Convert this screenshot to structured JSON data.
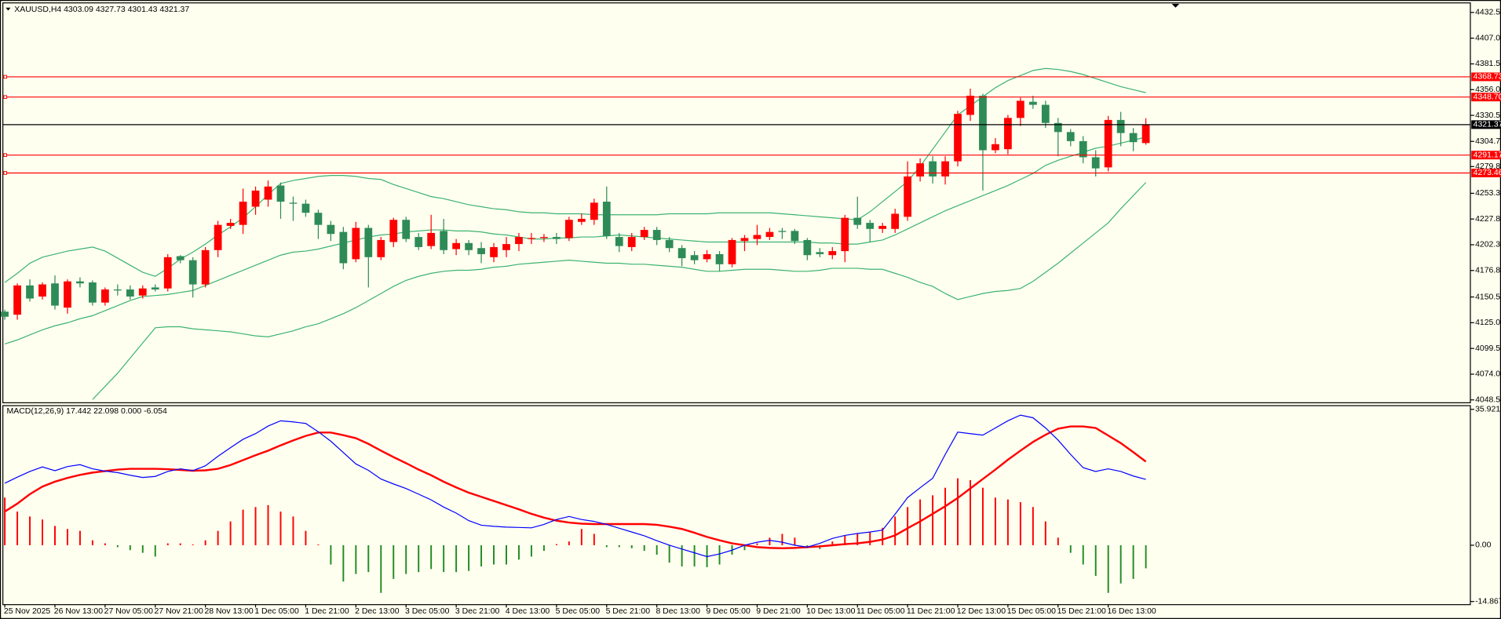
{
  "chart_data": [
    {
      "type": "candlestick",
      "title": "XAUUSD,H4  4303.09 4327.73 4301.43 4321.37",
      "categories": [
        "25 Nov 2025",
        null,
        null,
        null,
        "26 Nov 13:00",
        null,
        null,
        null,
        "27 Nov 05:00",
        null,
        null,
        null,
        "27 Nov 21:00",
        null,
        null,
        null,
        "28 Nov 13:00",
        null,
        null,
        null,
        "1 Dec 05:00",
        null,
        null,
        null,
        "1 Dec 21:00",
        null,
        null,
        null,
        "2 Dec 13:00",
        null,
        null,
        null,
        "3 Dec 05:00",
        null,
        null,
        null,
        "3 Dec 21:00",
        null,
        null,
        null,
        "4 Dec 13:00",
        null,
        null,
        null,
        "5 Dec 05:00",
        null,
        null,
        null,
        "5 Dec 21:00",
        null,
        null,
        null,
        "8 Dec 13:00",
        null,
        null,
        null,
        "9 Dec 05:00",
        null,
        null,
        null,
        "9 Dec 21:00",
        null,
        null,
        null,
        "10 Dec 13:00",
        null,
        null,
        null,
        "11 Dec 05:00",
        null,
        null,
        null,
        "11 Dec 21:00",
        null,
        null,
        null,
        "12 Dec 13:00",
        null,
        null,
        null,
        "15 Dec 05:00",
        null,
        null,
        null,
        "15 Dec 21:00",
        null,
        null,
        null,
        "16 Dec 13:00",
        null,
        null,
        null
      ],
      "open": [
        4136,
        4133,
        4162,
        4151,
        4164,
        4140,
        4166,
        4165,
        4145,
        4158,
        4158,
        4152,
        4160,
        4159,
        4191,
        4187,
        4163,
        4197,
        4221,
        4222,
        4240,
        4247,
        4261,
        4244,
        4243,
        4234,
        4222,
        4215,
        4188,
        4219,
        4190,
        4205,
        4227,
        4210,
        4201,
        4216,
        4198,
        4204,
        4199,
        4190,
        4197,
        4203,
        4208,
        4209,
        4210,
        4209,
        4225,
        4227,
        4245,
        4210,
        4200,
        4210,
        4217,
        4207,
        4199,
        4192,
        4188,
        4193,
        4183,
        4206,
        4208,
        4210,
        4216,
        4216,
        4207,
        4195,
        4192,
        4196,
        4229,
        4224,
        4218,
        4218,
        4230,
        4270,
        4285,
        4270,
        4285,
        4331,
        4350,
        4296,
        4297,
        4328,
        4344,
        4341,
        4323,
        4314,
        4305,
        4289,
        4279,
        4326,
        4313,
        4303.09
      ],
      "high": [
        4138,
        4164,
        4168,
        4165,
        4172,
        4168,
        4170,
        4167,
        4160,
        4163,
        4162,
        4162,
        4163,
        4193,
        4192,
        4190,
        4200,
        4226,
        4228,
        4258,
        4260,
        4266,
        4264,
        4250,
        4247,
        4237,
        4226,
        4220,
        4225,
        4222,
        4210,
        4229,
        4230,
        4214,
        4232,
        4228,
        4208,
        4207,
        4205,
        4204,
        4210,
        4214,
        4214,
        4213,
        4214,
        4230,
        4233,
        4248,
        4260,
        4214,
        4214,
        4220,
        4220,
        4210,
        4202,
        4196,
        4197,
        4196,
        4209,
        4212,
        4222,
        4219,
        4219,
        4218,
        4209,
        4199,
        4200,
        4232,
        4250,
        4227,
        4224,
        4238,
        4285,
        4288,
        4290,
        4290,
        4335,
        4357,
        4352,
        4308,
        4331,
        4348,
        4350,
        4345,
        4328,
        4317,
        4310,
        4296,
        4330,
        4334,
        4318,
        4327.73
      ],
      "low": [
        4128,
        4128,
        4146,
        4148,
        4138,
        4134,
        4160,
        4142,
        4142,
        4152,
        4148,
        4149,
        4156,
        4156,
        4184,
        4150,
        4160,
        4190,
        4218,
        4213,
        4232,
        4240,
        4228,
        4226,
        4230,
        4208,
        4206,
        4178,
        4185,
        4160,
        4187,
        4200,
        4205,
        4197,
        4198,
        4193,
        4192,
        4192,
        4184,
        4185,
        4190,
        4196,
        4203,
        4205,
        4203,
        4206,
        4222,
        4222,
        4208,
        4195,
        4196,
        4207,
        4202,
        4195,
        4181,
        4183,
        4185,
        4176,
        4180,
        4196,
        4202,
        4207,
        4208,
        4203,
        4187,
        4190,
        4188,
        4185,
        4218,
        4205,
        4214,
        4214,
        4226,
        4265,
        4263,
        4262,
        4280,
        4325,
        4256,
        4293,
        4292,
        4320,
        4337,
        4318,
        4290,
        4300,
        4283,
        4270,
        4275,
        4300,
        4295,
        4301.43
      ],
      "close": [
        4131,
        4162,
        4149,
        4163,
        4142,
        4166,
        4164,
        4145,
        4158,
        4157,
        4151,
        4159,
        4158,
        4190,
        4187,
        4163,
        4197,
        4222,
        4224,
        4245,
        4256,
        4260,
        4245,
        4243,
        4234,
        4222,
        4213,
        4184,
        4219,
        4190,
        4207,
        4227,
        4208,
        4200,
        4214,
        4197,
        4204,
        4197,
        4193,
        4200,
        4203,
        4210,
        4209,
        4210,
        4208,
        4227,
        4228,
        4244,
        4211,
        4201,
        4210,
        4217,
        4207,
        4199,
        4189,
        4187,
        4193,
        4183,
        4207,
        4209,
        4212,
        4215,
        4215,
        4206,
        4192,
        4193,
        4196,
        4229,
        4222,
        4218,
        4221,
        4233,
        4270,
        4283,
        4270,
        4285,
        4332,
        4350,
        4296,
        4302,
        4328,
        4345,
        4341,
        4323,
        4314,
        4305,
        4289,
        4278,
        4326,
        4313,
        4304,
        4321.37
      ],
      "up_color": "#ff0000",
      "down_color": "#2e8b57",
      "bands": {
        "color": "#3cb371",
        "upper": [
          4165,
          4174,
          4184,
          4190,
          4193,
          4196,
          4198,
          4200,
          4196,
          4189,
          4182,
          4175,
          4171,
          4179,
          4188,
          4195,
          4203,
          4212,
          4220,
          4229,
          4240,
          4252,
          4263,
          4266,
          4268,
          4270,
          4271,
          4271,
          4270,
          4268,
          4267,
          4262,
          4258,
          4254,
          4250,
          4248,
          4245,
          4242,
          4240,
          4238,
          4237,
          4235,
          4234,
          4234,
          4233,
          4233,
          4233,
          4232,
          4232,
          4232,
          4232,
          4232,
          4232,
          4233,
          4233,
          4233,
          4233,
          4234,
          4234,
          4234,
          4234,
          4234,
          4233,
          4232,
          4231,
          4230,
          4229,
          4228,
          4227,
          4235,
          4245,
          4255,
          4265,
          4280,
          4297,
          4314,
          4331,
          4340,
          4349,
          4358,
          4365,
          4370,
          4375,
          4377,
          4376,
          4374,
          4371,
          4367,
          4363,
          4359,
          4356,
          4353
        ],
        "middle": [
          4104,
          4108,
          4113,
          4118,
          4122,
          4125,
          4129,
          4132,
          4137,
          4142,
          4147,
          4151,
          4152,
          4153,
          4155,
          4157,
          4162,
          4167,
          4172,
          4177,
          4182,
          4187,
          4192,
          4195,
          4196,
          4198,
          4201,
          4204,
          4207,
          4210,
          4212,
          4213,
          4215,
          4216,
          4217,
          4217,
          4216,
          4216,
          4215,
          4213,
          4212,
          4210,
          4208,
          4208,
          4209,
          4209,
          4210,
          4210,
          4211,
          4212,
          4211,
          4210,
          4209,
          4208,
          4207,
          4206,
          4205,
          4205,
          4205,
          4205,
          4205,
          4205,
          4205,
          4205,
          4205,
          4204,
          4204,
          4203,
          4203,
          4205,
          4207,
          4212,
          4218,
          4224,
          4230,
          4236,
          4241,
          4246,
          4251,
          4256,
          4261,
          4267,
          4273,
          4281,
          4286,
          4290,
          4294,
          4298,
          4300,
          4303,
          4306,
          4309
        ],
        "lower": [
          null,
          null,
          null,
          null,
          null,
          null,
          null,
          4049,
          4062,
          4075,
          4090,
          4105,
          4120,
          4121,
          4121,
          4119,
          4118,
          4117,
          4116,
          4114,
          4112,
          4111,
          4114,
          4117,
          4121,
          4124,
          4129,
          4134,
          4140,
          4147,
          4154,
          4161,
          4167,
          4171,
          4174,
          4176,
          4177,
          4177,
          4178,
          4180,
          4181,
          4183,
          4184,
          4185,
          4186,
          4187,
          4186,
          4185,
          4184,
          4184,
          4183,
          4183,
          4182,
          4181,
          4180,
          4178,
          4176,
          4176,
          4177,
          4178,
          4178,
          4178,
          4177,
          4176,
          4176,
          4177,
          4179,
          4179,
          4179,
          4178,
          4178,
          4174,
          4170,
          4165,
          4161,
          4154,
          4148,
          4151,
          4154,
          4156,
          4157,
          4159,
          4166,
          4175,
          4184,
          4194,
          4204,
          4214,
          4224,
          4238,
          4251,
          4264
        ]
      },
      "levels": [
        4368.73,
        {
          "value": 4348.7,
          "label": "4348.70"
        },
        4291.17,
        4273.46
      ],
      "level_color": "#ff0000",
      "price_line": 4321.37,
      "price_color": "#000000",
      "ylim": [
        4045.7,
        4442.0
      ],
      "yticks": [
        4432.55,
        4407.05,
        4381.55,
        4356.05,
        4330.55,
        4304.75,
        {
          "value": 4279.8,
          "label": "4279.80"
        },
        {
          "value": 4253.3,
          "label": "4253.30"
        },
        {
          "value": 4227.8,
          "label": "4227.80"
        },
        {
          "value": 4202.3,
          "label": "4202.30"
        },
        {
          "value": 4176.8,
          "label": "4176.80"
        },
        4150.55,
        4125.05,
        4099.55,
        4074.05,
        4048.55
      ]
    },
    {
      "type": "macd",
      "title": "MACD(12,26,9) 17.442 22.098 0.000 -6.054",
      "macd": [
        16.4,
        18,
        19.5,
        20.7,
        19.7,
        20.8,
        21.3,
        20.2,
        19.6,
        19.2,
        18.5,
        17.9,
        18.2,
        19.5,
        20.2,
        19.7,
        21,
        23.5,
        25.8,
        28,
        29.5,
        31.5,
        32.9,
        32.6,
        32.2,
        30,
        27.5,
        24.5,
        21.5,
        19.8,
        17.5,
        16.2,
        15,
        13.5,
        12,
        10.1,
        8.5,
        6.5,
        5.3,
        5,
        4.8,
        4.7,
        4.6,
        5.5,
        6.8,
        7.6,
        6.8,
        6.3,
        5.5,
        4.5,
        3.5,
        2.5,
        1.2,
        0,
        -1,
        -2,
        -3,
        -2.3,
        -1.3,
        0,
        0.8,
        1.3,
        0.8,
        0,
        -0.5,
        0.5,
        1.8,
        2.6,
        3.1,
        3.5,
        4,
        8.2,
        12.6,
        15.2,
        17.7,
        24,
        29.9,
        29.5,
        29.1,
        31,
        32.9,
        34.4,
        33.7,
        31,
        27.8,
        24,
        20.5,
        19.5,
        20.2,
        19.5,
        18.3,
        17.4
      ],
      "signal": [
        8.9,
        11,
        13.5,
        15.5,
        16.8,
        17.8,
        18.6,
        19.2,
        19.6,
        20,
        20.2,
        20.2,
        20.2,
        20.1,
        19.9,
        19.7,
        19.8,
        20.2,
        21.2,
        22.5,
        23.8,
        25,
        26.4,
        27.7,
        28.9,
        29.8,
        29.8,
        29.1,
        28.3,
        26.8,
        25,
        23.3,
        21.7,
        20,
        18.5,
        16.8,
        15.3,
        13.9,
        12.8,
        11.7,
        10.6,
        9.5,
        8.3,
        7.3,
        6.5,
        6,
        5.7,
        5.6,
        5.6,
        5.6,
        5.6,
        5.6,
        5.4,
        4.9,
        4.3,
        3.3,
        2.2,
        1.3,
        0.5,
        0,
        -0.5,
        -0.7,
        -0.8,
        -0.7,
        -0.5,
        -0.3,
        0,
        0.3,
        0.5,
        0.9,
        1.5,
        2.6,
        4.5,
        6.3,
        8.3,
        10.3,
        12.5,
        15,
        17.5,
        20,
        22.6,
        25,
        27.3,
        29.2,
        30.8,
        31.4,
        31.4,
        31,
        29,
        27,
        24.6,
        22.1
      ],
      "histogram": [
        12.6,
        8.9,
        7.6,
        6.8,
        5.1,
        4.3,
        3.8,
        1.3,
        0.5,
        -0.5,
        -1.3,
        -2,
        -3,
        0.5,
        0.5,
        0.2,
        1.3,
        3.8,
        6.3,
        9.4,
        10.1,
        10.6,
        8.9,
        7.6,
        3.8,
        0.2,
        -5.1,
        -9.6,
        -7.6,
        -7.1,
        -12.6,
        -8.9,
        -7.6,
        -7.1,
        -6.3,
        -7.1,
        -7.1,
        -6.8,
        -5.6,
        -5.1,
        -5.1,
        -3.8,
        -3,
        -1.5,
        0.3,
        1,
        4.3,
        3,
        -0.5,
        -0.5,
        -0.8,
        -1.5,
        -2.5,
        -4.6,
        -5.6,
        -5.6,
        -5.8,
        -5.1,
        -2.5,
        -1.3,
        0.5,
        2,
        3,
        2,
        -0.5,
        -1,
        1,
        2.5,
        3,
        3.5,
        4.6,
        7.6,
        10.1,
        12.1,
        13.2,
        15.2,
        17.7,
        17.2,
        15.2,
        12.6,
        12.1,
        11.4,
        10.1,
        6.3,
        2,
        -2,
        -5.1,
        -8.1,
        -12.6,
        -10.1,
        -8.9,
        -6.1
      ],
      "macd_color": "#0000ff",
      "signal_color": "#ff0000",
      "hist_up_color": "#ff0000",
      "hist_down_color": "#228b22",
      "ylim": [
        -15.7,
        36.9
      ],
      "yticks": [
        35.921,
        {
          "value": 0,
          "label": "0.00"
        },
        -14.867
      ]
    }
  ]
}
